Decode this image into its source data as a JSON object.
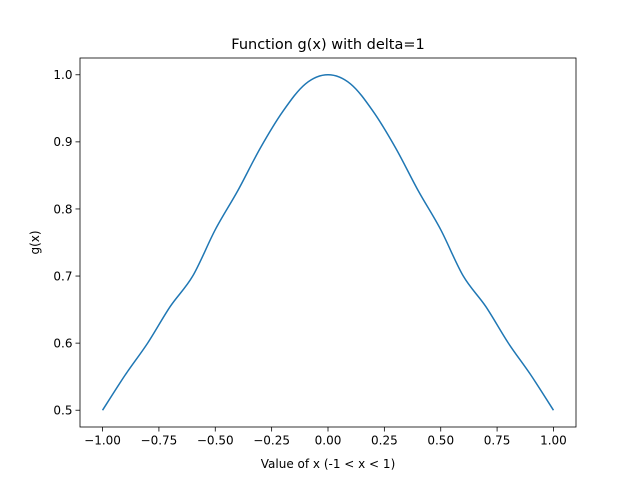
{
  "chart_data": {
    "type": "line",
    "title": "Function g(x) with delta=1",
    "xlabel": "Value of x (-1 < x < 1)",
    "ylabel": "g(x)",
    "xlim": [
      -1.1,
      1.1
    ],
    "ylim": [
      0.475,
      1.025
    ],
    "x_ticks": [
      -1.0,
      -0.75,
      -0.5,
      -0.25,
      0.0,
      0.25,
      0.5,
      0.75,
      1.0
    ],
    "x_tick_labels": [
      "−1.00",
      "−0.75",
      "−0.50",
      "−0.25",
      "0.00",
      "0.25",
      "0.50",
      "0.75",
      "1.00"
    ],
    "y_ticks": [
      0.5,
      0.6,
      0.7,
      0.8,
      0.9,
      1.0
    ],
    "y_tick_labels": [
      "0.5",
      "0.6",
      "0.7",
      "0.8",
      "0.9",
      "1.0"
    ],
    "grid": false,
    "legend": "none",
    "series": [
      {
        "color": "#1f77b4",
        "x": [
          -1.0,
          -0.9,
          -0.8,
          -0.7,
          -0.6,
          -0.5,
          -0.4,
          -0.3,
          -0.2,
          -0.1,
          0.0,
          0.1,
          0.2,
          0.3,
          0.4,
          0.5,
          0.6,
          0.7,
          0.8,
          0.9,
          1.0
        ],
        "y": [
          0.5,
          0.5523,
          0.6,
          0.6545,
          0.7,
          0.7691,
          0.8273,
          0.8909,
          0.9455,
          0.9864,
          1.0,
          0.9864,
          0.9455,
          0.8909,
          0.8273,
          0.7691,
          0.7,
          0.6545,
          0.6,
          0.5523,
          0.5
        ]
      }
    ]
  }
}
